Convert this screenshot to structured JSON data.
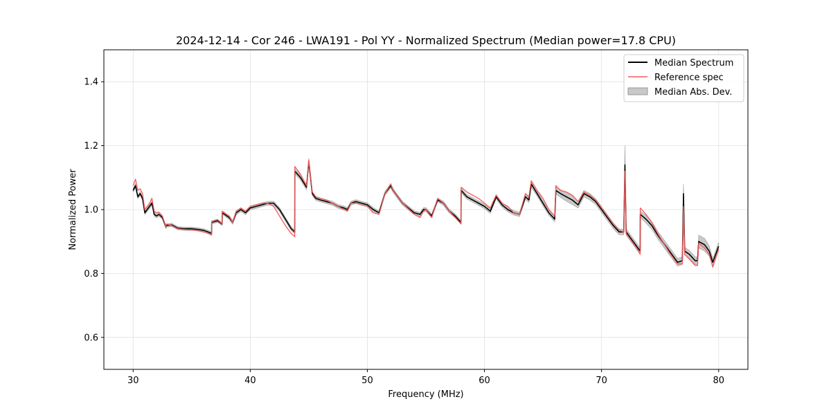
{
  "chart_data": {
    "type": "line",
    "title": "2024-12-14 - Cor 246 - LWA191 - Pol YY - Normalized Spectrum (Median power=17.8 CPU)",
    "xlabel": "Frequency (MHz)",
    "ylabel": "Normalized Power",
    "xlim": [
      27.5,
      82.5
    ],
    "ylim": [
      0.5,
      1.5
    ],
    "xticks": [
      30,
      40,
      50,
      60,
      70,
      80
    ],
    "yticks": [
      0.6,
      0.8,
      1.0,
      1.2,
      1.4
    ],
    "xtick_labels": [
      "30",
      "40",
      "50",
      "60",
      "70",
      "80"
    ],
    "ytick_labels": [
      "0.6",
      "0.8",
      "1.0",
      "1.2",
      "1.4"
    ],
    "grid": true,
    "legend_position": "top-right",
    "legend": [
      "Median Spectrum",
      "Reference spec",
      "Median Abs. Dev."
    ],
    "colors": {
      "median": "#000000",
      "reference": "#f05a5a",
      "mad": "#c8c8c8"
    },
    "series": [
      {
        "name": "Median Spectrum",
        "x": [
          30.0,
          30.2,
          30.4,
          30.6,
          30.8,
          31.0,
          31.2,
          31.4,
          31.6,
          31.8,
          32.0,
          32.2,
          32.5,
          32.8,
          32.81,
          33.3,
          33.8,
          34.3,
          35.0,
          35.5,
          36.0,
          36.4,
          36.7,
          36.71,
          37.2,
          37.6,
          37.61,
          38.2,
          38.5,
          38.8,
          39.2,
          39.6,
          40.0,
          40.5,
          41.0,
          41.5,
          42.0,
          42.5,
          43.0,
          43.5,
          43.8,
          43.81,
          44.3,
          44.8,
          45.0,
          45.3,
          45.6,
          46.0,
          46.5,
          47.0,
          47.5,
          48.0,
          48.3,
          48.6,
          49.0,
          49.5,
          50.0,
          50.5,
          51.0,
          51.5,
          52.0,
          52.2,
          53.0,
          54.0,
          54.5,
          54.8,
          55.0,
          55.5,
          56.0,
          56.5,
          57.0,
          57.5,
          58.0,
          58.01,
          58.5,
          59.0,
          59.5,
          60.0,
          60.5,
          61.0,
          61.5,
          62.0,
          62.5,
          63.0,
          63.5,
          63.8,
          64.0,
          64.5,
          65.0,
          65.5,
          66.0,
          66.1,
          66.5,
          67.0,
          67.5,
          68.0,
          68.5,
          69.0,
          69.5,
          70.0,
          70.5,
          71.0,
          71.5,
          71.9,
          72.0,
          72.1,
          72.5,
          73.0,
          73.3,
          73.31,
          73.8,
          74.3,
          74.8,
          75.3,
          75.8,
          76.2,
          76.5,
          76.9,
          77.0,
          77.1,
          77.5,
          78.0,
          78.2,
          78.3,
          78.8,
          79.2,
          79.5,
          80.0
        ],
        "y": [
          1.06,
          1.075,
          1.04,
          1.05,
          1.035,
          0.99,
          1.0,
          1.01,
          1.02,
          0.985,
          0.98,
          0.985,
          0.975,
          0.945,
          0.95,
          0.952,
          0.942,
          0.94,
          0.94,
          0.938,
          0.935,
          0.93,
          0.925,
          0.96,
          0.965,
          0.955,
          0.99,
          0.975,
          0.96,
          0.99,
          1.0,
          0.99,
          1.005,
          1.01,
          1.015,
          1.02,
          1.02,
          1.0,
          0.97,
          0.94,
          0.93,
          1.12,
          1.1,
          1.07,
          1.15,
          1.05,
          1.035,
          1.03,
          1.025,
          1.02,
          1.01,
          1.005,
          1.0,
          1.02,
          1.025,
          1.02,
          1.015,
          1.0,
          0.99,
          1.05,
          1.075,
          1.06,
          1.02,
          0.99,
          0.985,
          1.0,
          1.0,
          0.98,
          1.03,
          1.02,
          0.995,
          0.98,
          0.96,
          1.06,
          1.04,
          1.03,
          1.02,
          1.01,
          0.995,
          1.04,
          1.015,
          1.0,
          0.99,
          0.985,
          1.04,
          1.03,
          1.08,
          1.05,
          1.02,
          0.99,
          0.97,
          1.06,
          1.05,
          1.04,
          1.03,
          1.015,
          1.05,
          1.04,
          1.025,
          1.0,
          0.975,
          0.95,
          0.93,
          0.93,
          1.14,
          0.93,
          0.91,
          0.885,
          0.87,
          0.985,
          0.97,
          0.95,
          0.92,
          0.895,
          0.87,
          0.85,
          0.835,
          0.84,
          1.05,
          0.87,
          0.86,
          0.84,
          0.84,
          0.9,
          0.89,
          0.87,
          0.835,
          0.885
        ],
        "color": "#000000"
      },
      {
        "name": "Reference spec",
        "x": [
          30.0,
          30.2,
          30.4,
          30.6,
          30.8,
          31.0,
          31.2,
          31.4,
          31.6,
          31.8,
          32.0,
          32.2,
          32.5,
          32.8,
          32.81,
          33.3,
          33.8,
          34.3,
          35.0,
          35.5,
          36.0,
          36.4,
          36.7,
          36.71,
          37.2,
          37.6,
          37.61,
          38.2,
          38.5,
          38.8,
          39.2,
          39.6,
          40.0,
          40.5,
          41.0,
          41.5,
          42.0,
          42.5,
          43.0,
          43.5,
          43.8,
          43.81,
          44.3,
          44.8,
          45.0,
          45.3,
          45.6,
          46.0,
          46.5,
          47.0,
          47.5,
          48.0,
          48.3,
          48.6,
          49.0,
          49.5,
          50.0,
          50.5,
          51.0,
          51.5,
          52.0,
          52.2,
          53.0,
          54.0,
          54.5,
          54.8,
          55.0,
          55.5,
          56.0,
          56.5,
          57.0,
          57.5,
          58.0,
          58.01,
          58.5,
          59.0,
          59.5,
          60.0,
          60.5,
          61.0,
          61.5,
          62.0,
          62.5,
          63.0,
          63.5,
          63.8,
          64.0,
          64.5,
          65.0,
          65.5,
          66.0,
          66.1,
          66.5,
          67.0,
          67.5,
          68.0,
          68.5,
          69.0,
          69.5,
          70.0,
          70.5,
          71.0,
          71.5,
          71.9,
          72.0,
          72.1,
          72.5,
          73.0,
          73.3,
          73.31,
          73.8,
          74.3,
          74.8,
          75.3,
          75.8,
          76.2,
          76.5,
          76.9,
          77.0,
          77.1,
          77.5,
          78.0,
          78.2,
          78.3,
          78.8,
          79.2,
          79.5,
          80.0
        ],
        "y": [
          1.075,
          1.095,
          1.06,
          1.065,
          1.05,
          1.0,
          1.01,
          1.02,
          1.035,
          0.995,
          0.99,
          0.992,
          0.98,
          0.945,
          0.955,
          0.95,
          0.94,
          0.938,
          0.936,
          0.934,
          0.93,
          0.925,
          0.92,
          0.962,
          0.968,
          0.956,
          0.995,
          0.98,
          0.96,
          0.995,
          1.005,
          0.995,
          1.01,
          1.015,
          1.02,
          1.02,
          1.01,
          0.98,
          0.95,
          0.925,
          0.915,
          1.135,
          1.11,
          1.075,
          1.155,
          1.055,
          1.04,
          1.035,
          1.03,
          1.02,
          1.01,
          1.0,
          0.995,
          1.02,
          1.02,
          1.015,
          1.01,
          0.99,
          0.985,
          1.05,
          1.08,
          1.06,
          1.02,
          0.985,
          0.975,
          0.995,
          1.0,
          0.975,
          1.035,
          1.02,
          0.995,
          0.975,
          0.955,
          1.07,
          1.055,
          1.045,
          1.035,
          1.02,
          1.005,
          1.045,
          1.02,
          1.01,
          0.99,
          0.985,
          1.05,
          1.04,
          1.09,
          1.06,
          1.035,
          1.0,
          0.98,
          1.075,
          1.06,
          1.055,
          1.045,
          1.025,
          1.055,
          1.045,
          1.03,
          1.005,
          0.98,
          0.955,
          0.935,
          0.93,
          1.12,
          0.925,
          0.905,
          0.88,
          0.86,
          1.005,
          0.985,
          0.96,
          0.925,
          0.895,
          0.865,
          0.845,
          0.83,
          0.83,
          1.01,
          0.86,
          0.845,
          0.825,
          0.825,
          0.895,
          0.88,
          0.86,
          0.82,
          0.875
        ],
        "color": "#f05a5a"
      },
      {
        "name": "Median Abs. Dev.",
        "x": [
          30.0,
          30.2,
          30.4,
          30.6,
          30.8,
          31.0,
          31.2,
          31.4,
          31.6,
          31.8,
          32.0,
          32.2,
          32.5,
          32.8,
          32.81,
          33.3,
          33.8,
          34.3,
          35.0,
          35.5,
          36.0,
          36.4,
          36.7,
          36.71,
          37.2,
          37.6,
          37.61,
          38.2,
          38.5,
          38.8,
          39.2,
          39.6,
          40.0,
          40.5,
          41.0,
          41.5,
          42.0,
          42.5,
          43.0,
          43.5,
          43.8,
          43.81,
          44.3,
          44.8,
          45.0,
          45.3,
          45.6,
          46.0,
          46.5,
          47.0,
          47.5,
          48.0,
          48.3,
          48.6,
          49.0,
          49.5,
          50.0,
          50.5,
          51.0,
          51.5,
          52.0,
          52.2,
          53.0,
          54.0,
          54.5,
          54.8,
          55.0,
          55.5,
          56.0,
          56.5,
          57.0,
          57.5,
          58.0,
          58.01,
          58.5,
          59.0,
          59.5,
          60.0,
          60.5,
          61.0,
          61.5,
          62.0,
          62.5,
          63.0,
          63.5,
          63.8,
          64.0,
          64.5,
          65.0,
          65.5,
          66.0,
          66.1,
          66.5,
          67.0,
          67.5,
          68.0,
          68.5,
          69.0,
          69.5,
          70.0,
          70.5,
          71.0,
          71.5,
          71.9,
          72.0,
          72.1,
          72.5,
          73.0,
          73.3,
          73.31,
          73.8,
          74.3,
          74.8,
          75.3,
          75.8,
          76.2,
          76.5,
          76.9,
          77.0,
          77.1,
          77.5,
          78.0,
          78.2,
          78.3,
          78.8,
          79.2,
          79.5,
          80.0
        ],
        "dev": [
          0.006,
          0.006,
          0.006,
          0.006,
          0.006,
          0.006,
          0.006,
          0.006,
          0.006,
          0.006,
          0.006,
          0.006,
          0.005,
          0.005,
          0.005,
          0.005,
          0.005,
          0.005,
          0.005,
          0.005,
          0.005,
          0.005,
          0.005,
          0.005,
          0.005,
          0.005,
          0.005,
          0.006,
          0.006,
          0.006,
          0.006,
          0.006,
          0.006,
          0.006,
          0.006,
          0.006,
          0.006,
          0.006,
          0.006,
          0.006,
          0.006,
          0.008,
          0.008,
          0.008,
          0.01,
          0.006,
          0.006,
          0.006,
          0.006,
          0.006,
          0.006,
          0.006,
          0.006,
          0.006,
          0.006,
          0.006,
          0.006,
          0.006,
          0.006,
          0.006,
          0.007,
          0.006,
          0.006,
          0.006,
          0.006,
          0.006,
          0.006,
          0.006,
          0.006,
          0.006,
          0.006,
          0.006,
          0.006,
          0.007,
          0.007,
          0.007,
          0.007,
          0.007,
          0.007,
          0.007,
          0.007,
          0.007,
          0.007,
          0.007,
          0.008,
          0.008,
          0.01,
          0.008,
          0.008,
          0.008,
          0.008,
          0.01,
          0.012,
          0.014,
          0.014,
          0.01,
          0.01,
          0.01,
          0.009,
          0.009,
          0.009,
          0.009,
          0.009,
          0.009,
          0.06,
          0.01,
          0.01,
          0.01,
          0.01,
          0.01,
          0.012,
          0.012,
          0.012,
          0.012,
          0.012,
          0.012,
          0.012,
          0.012,
          0.03,
          0.012,
          0.012,
          0.012,
          0.012,
          0.02,
          0.02,
          0.016,
          0.012,
          0.012
        ],
        "color": "#c8c8c8"
      }
    ]
  }
}
